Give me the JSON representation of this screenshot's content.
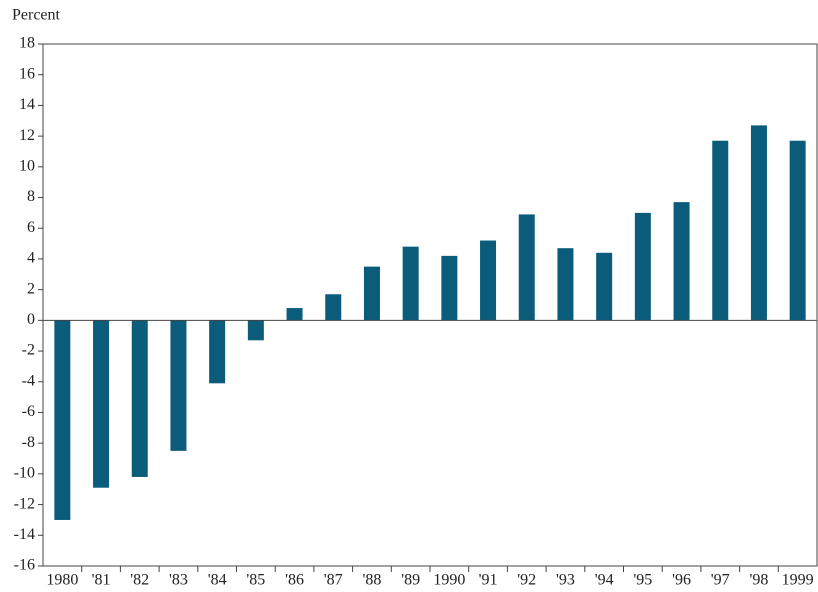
{
  "chart_data": {
    "type": "bar",
    "y_label": "Percent",
    "categories": [
      "1980",
      "'81",
      "'82",
      "'83",
      "'84",
      "'85",
      "'86",
      "'87",
      "'88",
      "'89",
      "1990",
      "'91",
      "'92",
      "'93",
      "'94",
      "'95",
      "'96",
      "'97",
      "'98",
      "1999"
    ],
    "values": [
      -13.0,
      -10.9,
      -10.2,
      -8.5,
      -4.1,
      -1.3,
      0.8,
      1.7,
      3.5,
      4.8,
      4.2,
      5.2,
      6.9,
      4.7,
      4.4,
      7.0,
      7.7,
      11.7,
      12.7,
      11.7
    ],
    "color": "#0b5c7a",
    "ylim": [
      -16,
      18
    ],
    "yticks": [
      -16,
      -14,
      -12,
      -10,
      -8,
      -6,
      -4,
      -2,
      0,
      2,
      4,
      6,
      8,
      10,
      12,
      14,
      16,
      18
    ]
  }
}
